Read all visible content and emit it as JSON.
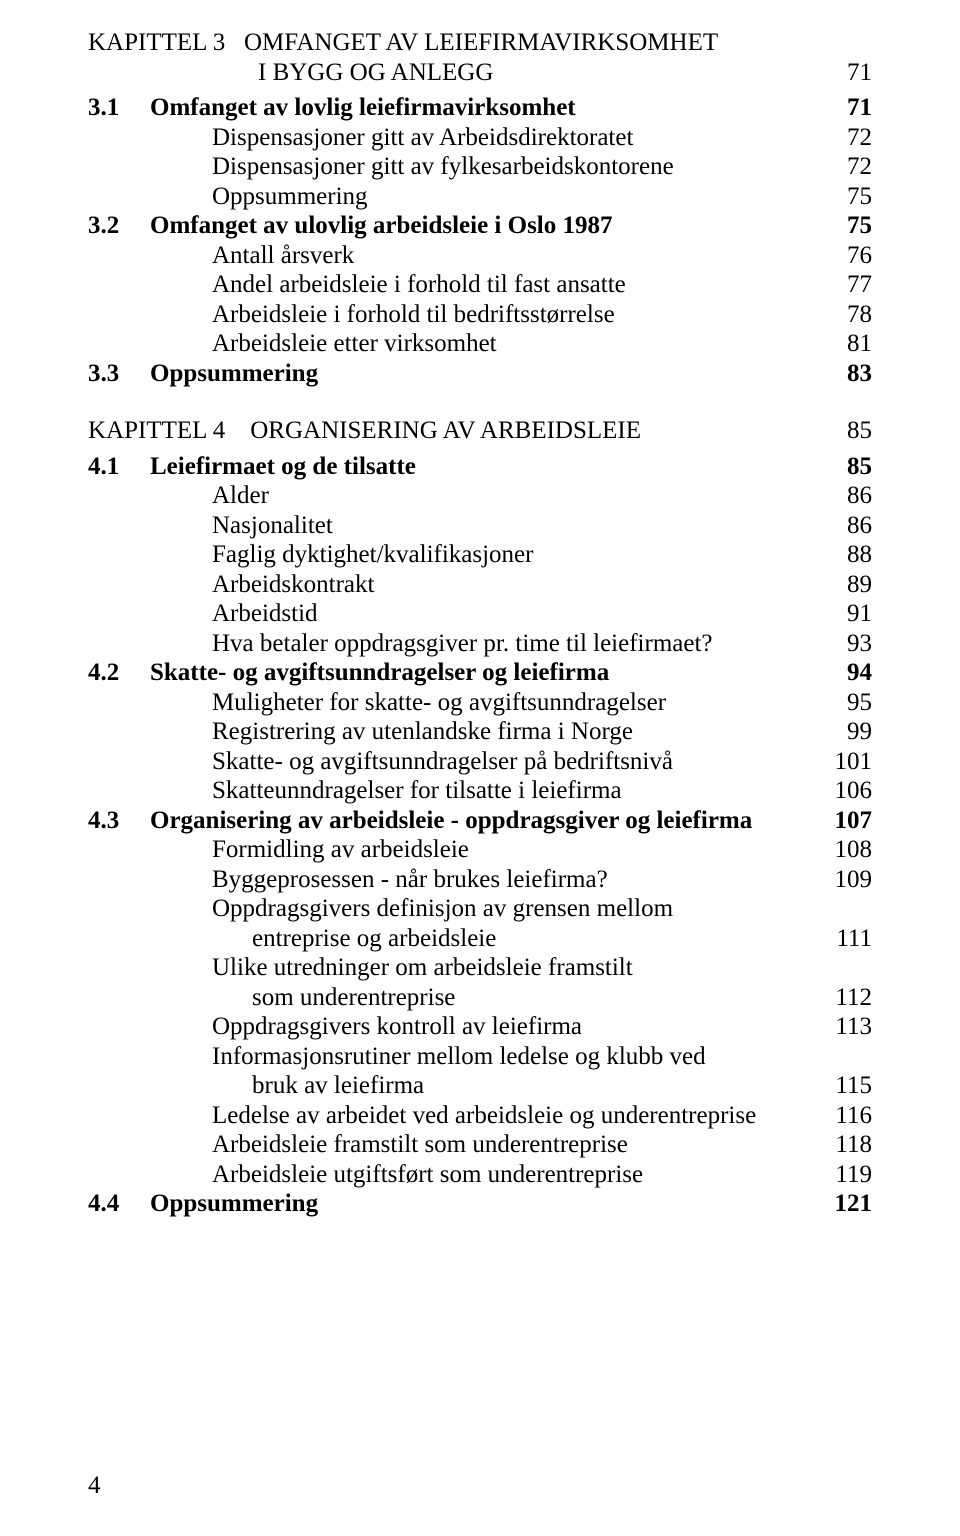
{
  "chapter3": {
    "num_prefix": "KAPITTEL 3",
    "title_line1": "OMFANGET AV LEIEFIRMAVIRKSOMHET",
    "title_line2": "I BYGG OG ANLEGG",
    "page": "71"
  },
  "rows3": [
    {
      "num": "3.1",
      "txt": "Omfanget av lovlig leiefirmavirksomhet",
      "pg": "71",
      "bold": true,
      "ind": 0
    },
    {
      "num": "",
      "txt": "Dispensasjoner gitt av Arbeidsdirektoratet",
      "pg": "72",
      "bold": false,
      "ind": 1
    },
    {
      "num": "",
      "txt": "Dispensasjoner gitt av fylkesarbeidskontorene",
      "pg": "72",
      "bold": false,
      "ind": 1
    },
    {
      "num": "",
      "txt": "Oppsummering",
      "pg": "75",
      "bold": false,
      "ind": 1
    },
    {
      "num": "3.2",
      "txt": "Omfanget av ulovlig arbeidsleie i Oslo 1987",
      "pg": "75",
      "bold": true,
      "ind": 0
    },
    {
      "num": "",
      "txt": "Antall årsverk",
      "pg": "76",
      "bold": false,
      "ind": 1
    },
    {
      "num": "",
      "txt": "Andel arbeidsleie i forhold til fast ansatte",
      "pg": "77",
      "bold": false,
      "ind": 1
    },
    {
      "num": "",
      "txt": "Arbeidsleie i forhold til bedriftsstørrelse",
      "pg": "78",
      "bold": false,
      "ind": 1
    },
    {
      "num": "",
      "txt": "Arbeidsleie etter virksomhet",
      "pg": "81",
      "bold": false,
      "ind": 1
    },
    {
      "num": "3.3",
      "txt": "Oppsummering",
      "pg": "83",
      "bold": true,
      "ind": 0
    }
  ],
  "chapter4": {
    "num_prefix": "KAPITTEL 4",
    "title": "ORGANISERING AV ARBEIDSLEIE",
    "page": "85"
  },
  "rows4": [
    {
      "num": "4.1",
      "txt": "Leiefirmaet og de tilsatte",
      "pg": "85",
      "bold": true,
      "ind": 0
    },
    {
      "num": "",
      "txt": "Alder",
      "pg": "86",
      "bold": false,
      "ind": 1
    },
    {
      "num": "",
      "txt": "Nasjonalitet",
      "pg": "86",
      "bold": false,
      "ind": 1
    },
    {
      "num": "",
      "txt": "Faglig dyktighet/kvalifikasjoner",
      "pg": "88",
      "bold": false,
      "ind": 1
    },
    {
      "num": "",
      "txt": "Arbeidskontrakt",
      "pg": "89",
      "bold": false,
      "ind": 1
    },
    {
      "num": "",
      "txt": "Arbeidstid",
      "pg": "91",
      "bold": false,
      "ind": 1
    },
    {
      "num": "",
      "txt": "Hva betaler oppdragsgiver pr. time til leiefirmaet?",
      "pg": "93",
      "bold": false,
      "ind": 1
    },
    {
      "num": "4.2",
      "txt": "Skatte- og avgiftsunndragelser og leiefirma",
      "pg": "94",
      "bold": true,
      "ind": 0
    },
    {
      "num": "",
      "txt": "Muligheter for skatte- og avgiftsunndragelser",
      "pg": "95",
      "bold": false,
      "ind": 1
    },
    {
      "num": "",
      "txt": "Registrering av utenlandske firma i Norge",
      "pg": "99",
      "bold": false,
      "ind": 1
    },
    {
      "num": "",
      "txt": "Skatte- og avgiftsunndragelser på bedriftsnivå",
      "pg": "101",
      "bold": false,
      "ind": 1
    },
    {
      "num": "",
      "txt": "Skatteunndragelser for tilsatte i leiefirma",
      "pg": "106",
      "bold": false,
      "ind": 1
    },
    {
      "num": "4.3",
      "txt": "Organisering av arbeidsleie - oppdragsgiver og leiefirma",
      "pg": "107",
      "bold": true,
      "ind": 0
    },
    {
      "num": "",
      "txt": "Formidling av arbeidsleie",
      "pg": "108",
      "bold": false,
      "ind": 1
    },
    {
      "num": "",
      "txt": "Byggeprosessen - når brukes leiefirma?",
      "pg": "109",
      "bold": false,
      "ind": 1
    },
    {
      "num": "",
      "txt": "Oppdragsgivers definisjon av grensen mellom",
      "pg": "",
      "bold": false,
      "ind": 1
    },
    {
      "num": "",
      "txt": "entreprise og arbeidsleie",
      "pg": "111",
      "bold": false,
      "ind": 2
    },
    {
      "num": "",
      "txt": "Ulike utredninger om arbeidsleie framstilt",
      "pg": "",
      "bold": false,
      "ind": 1
    },
    {
      "num": "",
      "txt": "som underentreprise",
      "pg": "112",
      "bold": false,
      "ind": 2
    },
    {
      "num": "",
      "txt": "Oppdragsgivers kontroll av leiefirma",
      "pg": "113",
      "bold": false,
      "ind": 1
    },
    {
      "num": "",
      "txt": "Informasjonsrutiner mellom ledelse og klubb ved",
      "pg": "",
      "bold": false,
      "ind": 1
    },
    {
      "num": "",
      "txt": "bruk av leiefirma",
      "pg": "115",
      "bold": false,
      "ind": 2
    },
    {
      "num": "",
      "txt": "Ledelse av arbeidet ved arbeidsleie og underentreprise",
      "pg": "116",
      "bold": false,
      "ind": 1
    },
    {
      "num": "",
      "txt": "Arbeidsleie framstilt som underentreprise",
      "pg": "118",
      "bold": false,
      "ind": 1
    },
    {
      "num": "",
      "txt": "Arbeidsleie utgiftsført som underentreprise",
      "pg": "119",
      "bold": false,
      "ind": 1
    },
    {
      "num": "4.4",
      "txt": "Oppsummering",
      "pg": "121",
      "bold": true,
      "ind": 0
    }
  ],
  "footer_page": "4"
}
